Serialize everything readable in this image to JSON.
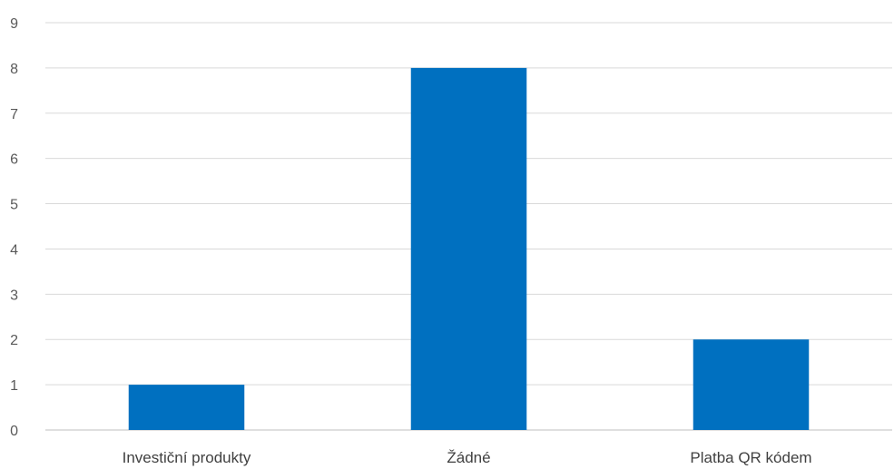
{
  "chart_data": {
    "type": "bar",
    "categories": [
      "Investiční produkty",
      "Žádné",
      "Platba QR kódem"
    ],
    "values": [
      1,
      8,
      2
    ],
    "title": "",
    "xlabel": "",
    "ylabel": "",
    "ylim": [
      0,
      9
    ],
    "yticks": [
      "0",
      "1",
      "2",
      "3",
      "4",
      "5",
      "6",
      "7",
      "8",
      "9"
    ],
    "grid": true,
    "legend": "none"
  },
  "colors": {
    "bar": "#0070C0",
    "grid": "#d9d9d9",
    "axis": "#bfbfbf"
  }
}
